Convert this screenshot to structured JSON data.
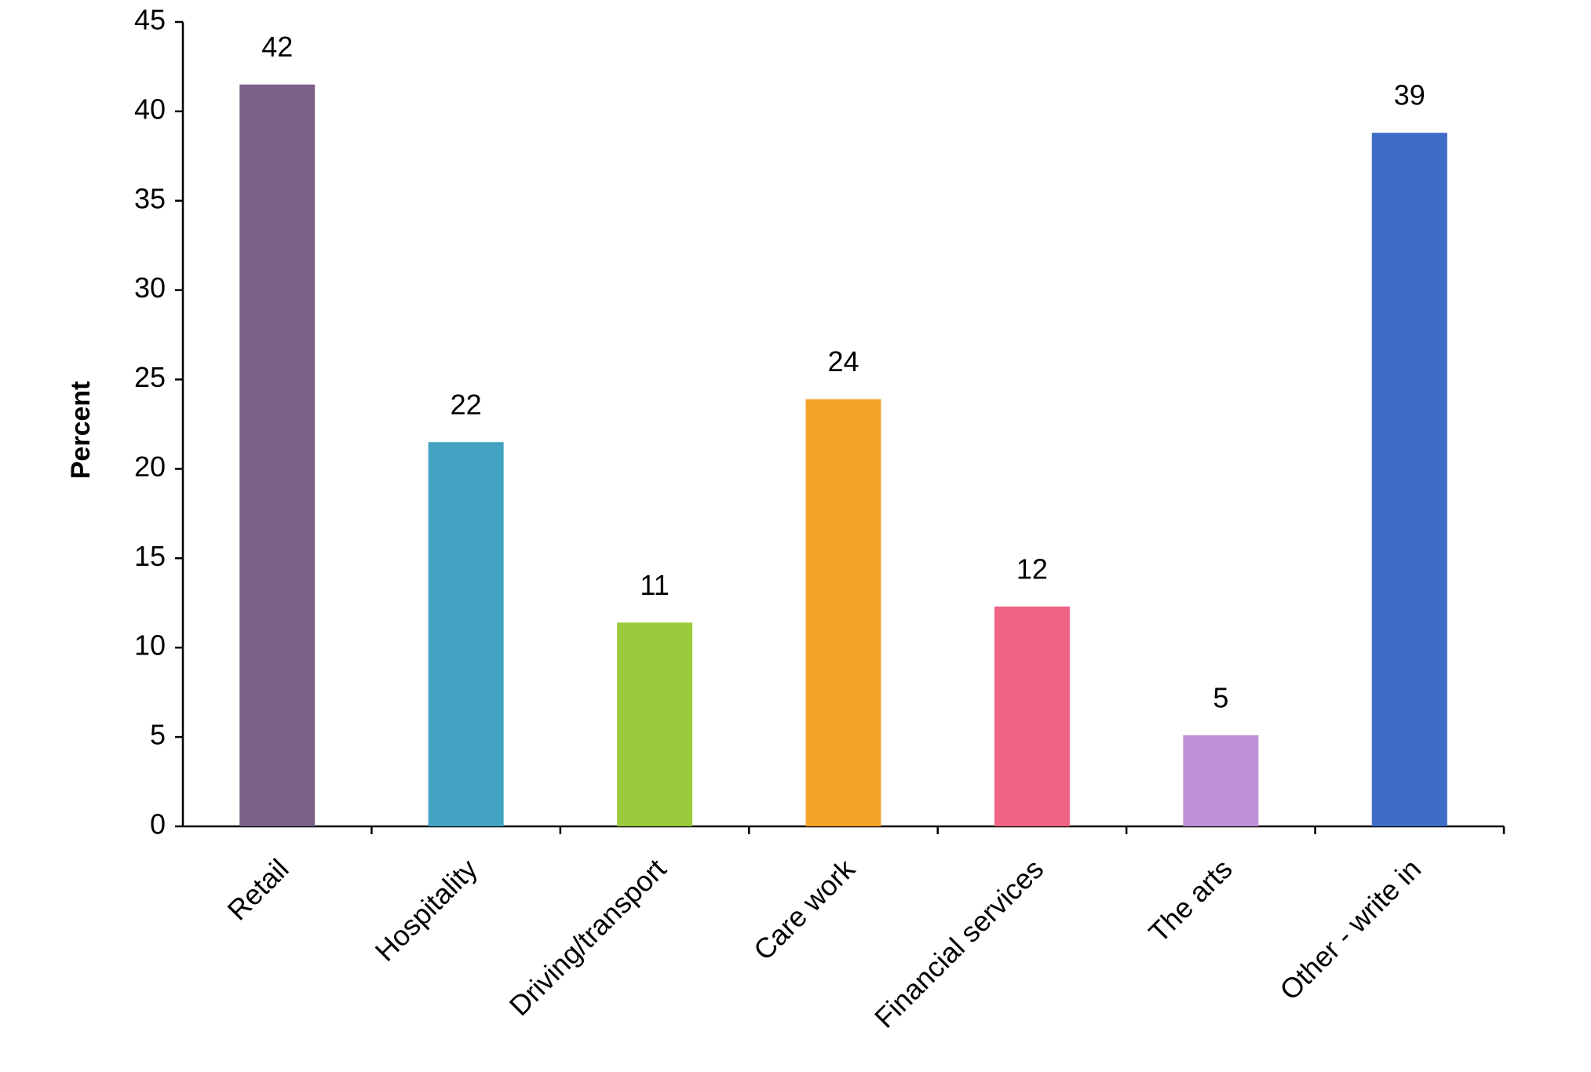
{
  "chart_data": {
    "type": "bar",
    "y_label": "Percent",
    "categories": [
      "Retail",
      "Hospitality",
      "Driving/transport",
      "Care work",
      "Financial services",
      "The arts",
      "Other - write in"
    ],
    "values": [
      41.5,
      21.5,
      11.4,
      23.9,
      12.3,
      5.1,
      38.8
    ],
    "value_labels": [
      "42",
      "22",
      "11",
      "24",
      "12",
      "5",
      "39"
    ],
    "colors": [
      "#7b6189",
      "#42a2c1",
      "#9bc93c",
      "#f4a42a",
      "#ef6384",
      "#bf91d8",
      "#3e6cc7"
    ],
    "ylim": [
      0,
      45
    ],
    "yticks": [
      0,
      5,
      10,
      15,
      20,
      25,
      30,
      35,
      40,
      45
    ],
    "grid": false
  }
}
